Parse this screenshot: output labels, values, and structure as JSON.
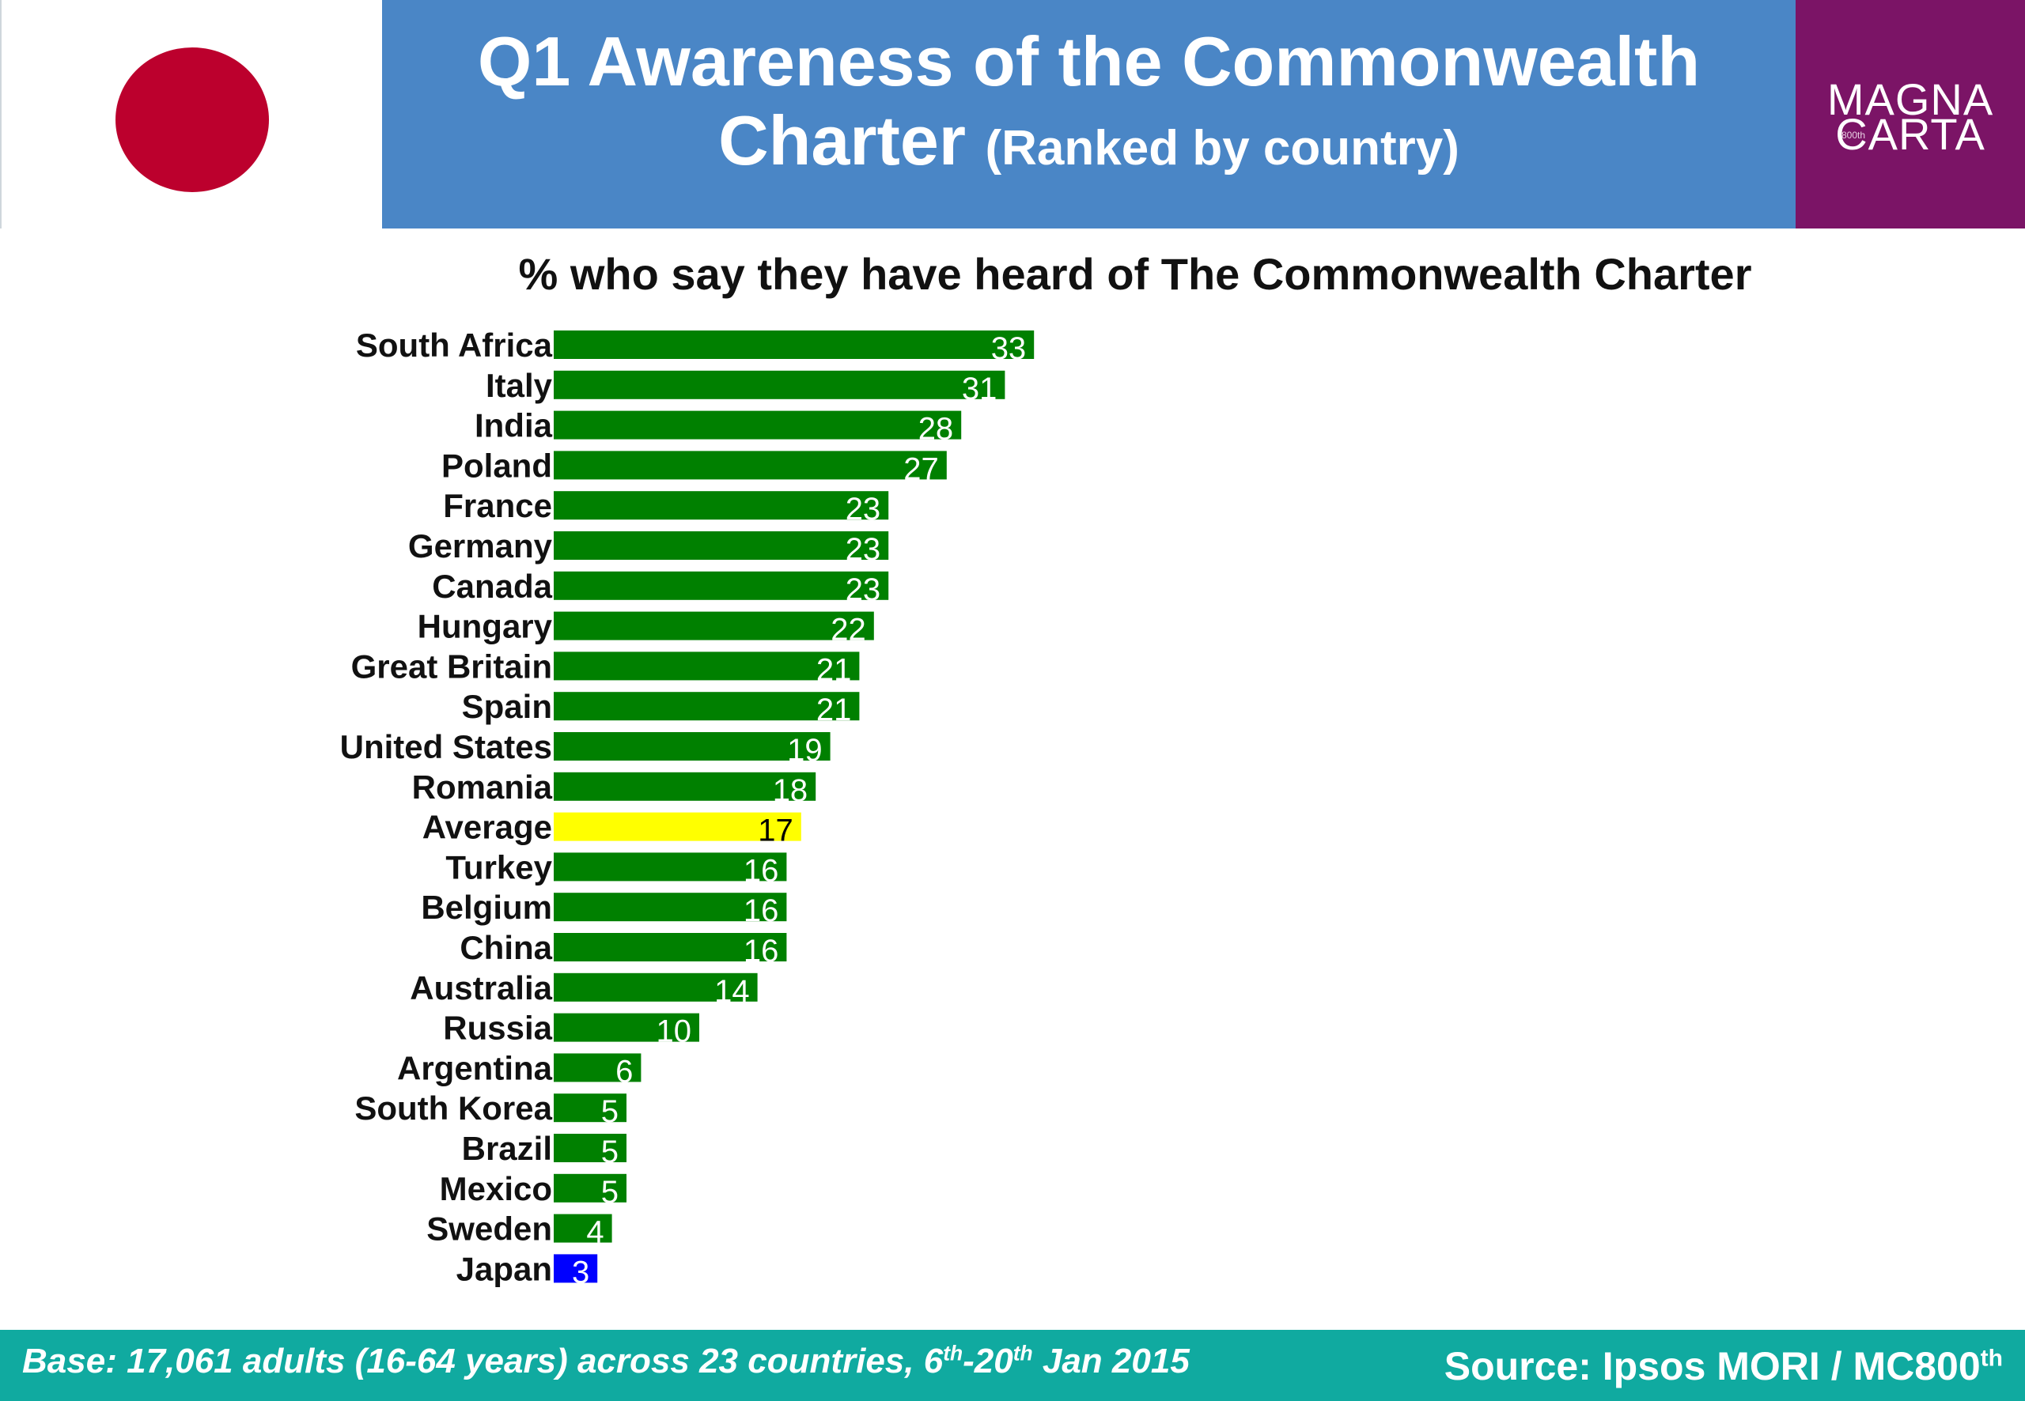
{
  "header": {
    "title_line1": "Q1 Awareness of the Commonwealth",
    "title_line2_main": "Charter",
    "title_line2_sub": "(Ranked by country)",
    "flag_color": "#bc002d",
    "logo_line1": "MAGNA",
    "logo_line2": "CARTA",
    "logo_tag": "800th"
  },
  "footer": {
    "base_prefix": "Base: 17,061 adults (16-64 years) across 23 countries, 6",
    "base_sup1": "th",
    "base_mid": "-20",
    "base_sup2": "th",
    "base_suffix": " Jan 2015",
    "source_prefix": "Source: Ipsos MORI / MC800",
    "source_sup": "th"
  },
  "colors": {
    "country_bar": "#008000",
    "average_bar": "#ffff00",
    "highlight_bar": "#0000ff",
    "banner": "#4a86c6",
    "logo": "#7b1466",
    "footer": "#10aaa0"
  },
  "chart_data": {
    "type": "bar",
    "orientation": "horizontal",
    "title": "% who say they have heard of The Commonwealth Charter",
    "xlabel": "",
    "ylabel": "",
    "xlim": [
      0,
      100
    ],
    "grid": false,
    "legend": "none",
    "categories": [
      "South Africa",
      "Italy",
      "India",
      "Poland",
      "France",
      "Germany",
      "Canada",
      "Hungary",
      "Great Britain",
      "Spain",
      "United States",
      "Romania",
      "Average",
      "Turkey",
      "Belgium",
      "China",
      "Australia",
      "Russia",
      "Argentina",
      "South Korea",
      "Brazil",
      "Mexico",
      "Sweden",
      "Japan"
    ],
    "values": [
      33,
      31,
      28,
      27,
      23,
      23,
      23,
      22,
      21,
      21,
      19,
      18,
      17,
      16,
      16,
      16,
      14,
      10,
      6,
      5,
      5,
      5,
      4,
      3
    ],
    "bar_colors": [
      "#008000",
      "#008000",
      "#008000",
      "#008000",
      "#008000",
      "#008000",
      "#008000",
      "#008000",
      "#008000",
      "#008000",
      "#008000",
      "#008000",
      "#ffff00",
      "#008000",
      "#008000",
      "#008000",
      "#008000",
      "#008000",
      "#008000",
      "#008000",
      "#008000",
      "#008000",
      "#008000",
      "#0000ff"
    ],
    "label_colors": [
      "#ffffff",
      "#ffffff",
      "#ffffff",
      "#ffffff",
      "#ffffff",
      "#ffffff",
      "#ffffff",
      "#ffffff",
      "#ffffff",
      "#ffffff",
      "#ffffff",
      "#ffffff",
      "#000000",
      "#ffffff",
      "#ffffff",
      "#ffffff",
      "#ffffff",
      "#ffffff",
      "#ffffff",
      "#ffffff",
      "#ffffff",
      "#ffffff",
      "#ffffff",
      "#ffffff"
    ]
  }
}
